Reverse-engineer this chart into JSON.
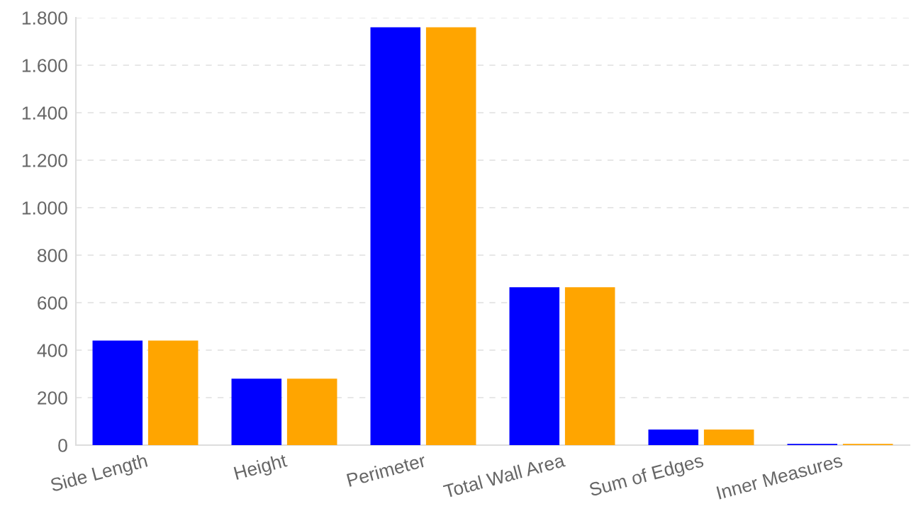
{
  "chart_data": {
    "type": "bar",
    "categories": [
      "Side Length",
      "Height",
      "Perimeter",
      "Total Wall Area",
      "Sum of Edges",
      "Inner Measures"
    ],
    "series": [
      {
        "color": "#0000ff",
        "values": [
          440,
          280,
          1760,
          665,
          66,
          5
        ]
      },
      {
        "color": "#ffa500",
        "values": [
          440,
          280,
          1760,
          665,
          66,
          5
        ]
      }
    ],
    "ylim": [
      0,
      1800
    ],
    "yticks": [
      {
        "value": 0,
        "label": "0"
      },
      {
        "value": 200,
        "label": "200"
      },
      {
        "value": 400,
        "label": "400"
      },
      {
        "value": 600,
        "label": "600"
      },
      {
        "value": 800,
        "label": "800"
      },
      {
        "value": 1000,
        "label": "1.000"
      },
      {
        "value": 1200,
        "label": "1.200"
      },
      {
        "value": 1400,
        "label": "1.400"
      },
      {
        "value": 1600,
        "label": "1.600"
      },
      {
        "value": 1800,
        "label": "1.800"
      }
    ],
    "grid": "y"
  }
}
